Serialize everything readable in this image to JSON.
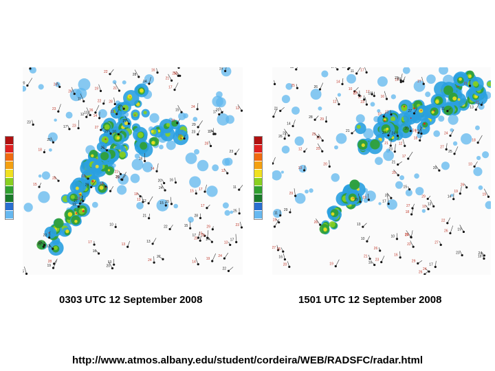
{
  "panels": [
    {
      "caption": "0303 UTC 12 September 2008"
    },
    {
      "caption": "1501 UTC 12 September 2008"
    }
  ],
  "source_url": "http://www.atmos.albany.edu/student/cordeira/WEB/RADSFC/radar.html",
  "reflectivity_scale": {
    "colors": [
      "#b01010",
      "#e02020",
      "#f06a10",
      "#f4a010",
      "#f0e020",
      "#8ad020",
      "#30a030",
      "#1a7a2a",
      "#2a6fd0",
      "#66b8f0"
    ]
  }
}
